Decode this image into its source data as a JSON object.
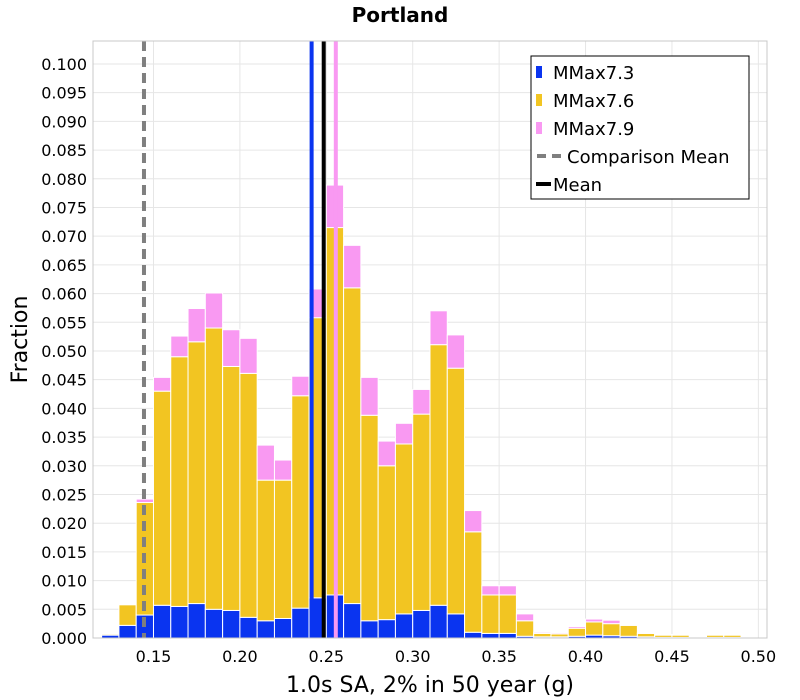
{
  "chart_data": {
    "type": "bar",
    "stacked": true,
    "title": "Portland",
    "xlabel": "1.0s SA, 2% in 50 year (g)",
    "ylabel": "Fraction",
    "xlim": [
      0.115,
      0.505
    ],
    "ylim": [
      0,
      0.104
    ],
    "xticks": [
      0.15,
      0.2,
      0.25,
      0.3,
      0.35,
      0.4,
      0.45,
      0.5
    ],
    "xtick_labels": [
      "0.15",
      "0.20",
      "0.25",
      "0.30",
      "0.35",
      "0.40",
      "0.45",
      "0.50"
    ],
    "yticks": [
      0,
      0.005,
      0.01,
      0.015,
      0.02,
      0.025,
      0.03,
      0.035,
      0.04,
      0.045,
      0.05,
      0.055,
      0.06,
      0.065,
      0.07,
      0.075,
      0.08,
      0.085,
      0.09,
      0.095,
      0.1
    ],
    "ytick_labels": [
      "0.000",
      "0.005",
      "0.010",
      "0.015",
      "0.020",
      "0.025",
      "0.030",
      "0.035",
      "0.040",
      "0.045",
      "0.050",
      "0.055",
      "0.060",
      "0.065",
      "0.070",
      "0.075",
      "0.080",
      "0.085",
      "0.090",
      "0.095",
      "0.100"
    ],
    "grid": true,
    "legend_position": "top-right",
    "bin_width": 0.01,
    "bin_centers": [
      0.125,
      0.135,
      0.145,
      0.155,
      0.165,
      0.175,
      0.185,
      0.195,
      0.205,
      0.215,
      0.225,
      0.235,
      0.245,
      0.255,
      0.265,
      0.275,
      0.285,
      0.295,
      0.305,
      0.315,
      0.325,
      0.335,
      0.345,
      0.355,
      0.365,
      0.375,
      0.385,
      0.395,
      0.405,
      0.415,
      0.425,
      0.435,
      0.445,
      0.455,
      0.465,
      0.475,
      0.485
    ],
    "series": [
      {
        "name": "MMax7.3",
        "color": "#0a34f0",
        "values": [
          0.0005,
          0.0022,
          0.004,
          0.0057,
          0.0055,
          0.006,
          0.005,
          0.0048,
          0.0036,
          0.003,
          0.0034,
          0.0052,
          0.007,
          0.0075,
          0.006,
          0.003,
          0.0032,
          0.0042,
          0.0048,
          0.0057,
          0.0042,
          0.001,
          0.0008,
          0.0008,
          0.0003,
          0.0002,
          0.0002,
          0.0003,
          0.0005,
          0.0004,
          0.0003,
          0.0002,
          0.0001,
          0.0001,
          0.0,
          0.0001,
          0.0001
        ]
      },
      {
        "name": "MMax7.6",
        "color": "#f2c522",
        "values": [
          0.0002,
          0.0036,
          0.0196,
          0.0373,
          0.0435,
          0.0456,
          0.049,
          0.0425,
          0.0425,
          0.0245,
          0.0241,
          0.037,
          0.0488,
          0.064,
          0.055,
          0.0358,
          0.0268,
          0.0296,
          0.0342,
          0.0454,
          0.0428,
          0.0175,
          0.0067,
          0.0067,
          0.0027,
          0.0006,
          0.0005,
          0.0014,
          0.0023,
          0.0021,
          0.0019,
          0.0006,
          0.0004,
          0.0004,
          0.0,
          0.0004,
          0.0004
        ]
      },
      {
        "name": "MMax7.9",
        "color": "#f999f2",
        "values": [
          0.0001,
          0.0001,
          0.0006,
          0.0024,
          0.0036,
          0.0058,
          0.0061,
          0.0064,
          0.0061,
          0.0061,
          0.0035,
          0.0034,
          0.005,
          0.0074,
          0.0074,
          0.0066,
          0.0043,
          0.0036,
          0.0043,
          0.0059,
          0.0058,
          0.0037,
          0.0016,
          0.0016,
          0.0012,
          0.0002,
          0.0002,
          0.0003,
          0.0005,
          0.0006,
          0.0001,
          0.0001,
          0.0001,
          0.0001,
          0.0,
          0.0001,
          0.0001
        ]
      }
    ],
    "vertical_lines": [
      {
        "name": "Comparison Mean",
        "x": 0.1445,
        "color": "#7f7f7f",
        "style": "dashed"
      },
      {
        "name": "Mean",
        "x": 0.2485,
        "color": "#000000",
        "style": "solid"
      },
      {
        "name": "",
        "x": 0.2415,
        "color": "#0a34f0",
        "style": "solid"
      },
      {
        "name": "",
        "x": 0.2555,
        "color": "#f999f2",
        "style": "solid"
      }
    ],
    "legend": [
      {
        "label": "MMax7.3",
        "kind": "box",
        "color": "#0a34f0"
      },
      {
        "label": "MMax7.6",
        "kind": "box",
        "color": "#f2c522"
      },
      {
        "label": "MMax7.9",
        "kind": "box",
        "color": "#f999f2"
      },
      {
        "label": "Comparison Mean",
        "kind": "dashed",
        "color": "#7f7f7f"
      },
      {
        "label": "Mean",
        "kind": "solid",
        "color": "#000000"
      }
    ]
  }
}
